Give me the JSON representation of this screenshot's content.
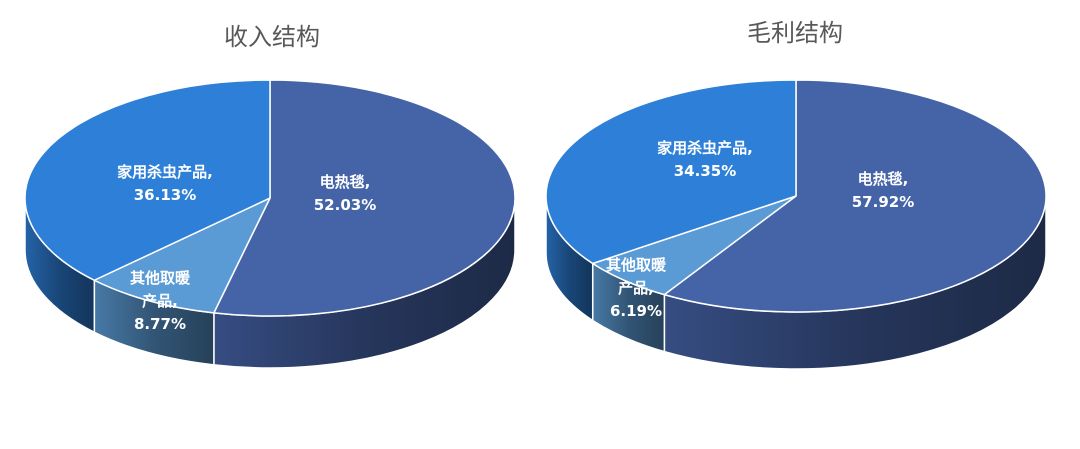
{
  "chart_data": [
    {
      "type": "pie",
      "title": "收入结构",
      "slices": [
        {
          "name": "电热毯",
          "value": 52.03,
          "label": [
            "电热毯,",
            "52.03%"
          ],
          "color": "#4563A7"
        },
        {
          "name": "其他取暖产品",
          "value": 8.77,
          "label": [
            "其他取暖",
            "产品,",
            "8.77%"
          ],
          "color": "#5B9BD5"
        },
        {
          "name": "家用杀虫产品",
          "value": 36.13,
          "label": [
            "家用杀虫产品,",
            "36.13%"
          ],
          "color": "#2E7FD8"
        }
      ]
    },
    {
      "type": "pie",
      "title": "毛利结构",
      "slices": [
        {
          "name": "电热毯",
          "value": 57.92,
          "label": [
            "电热毯,",
            "57.92%"
          ],
          "color": "#4563A7"
        },
        {
          "name": "其他取暖产品",
          "value": 6.19,
          "label": [
            "其他取暖",
            "产品,",
            "6.19%"
          ],
          "color": "#5B9BD5"
        },
        {
          "name": "家用杀虫产品",
          "value": 34.35,
          "label": [
            "家用杀虫产品,",
            "34.35%"
          ],
          "color": "#2E7FD8"
        }
      ]
    }
  ]
}
